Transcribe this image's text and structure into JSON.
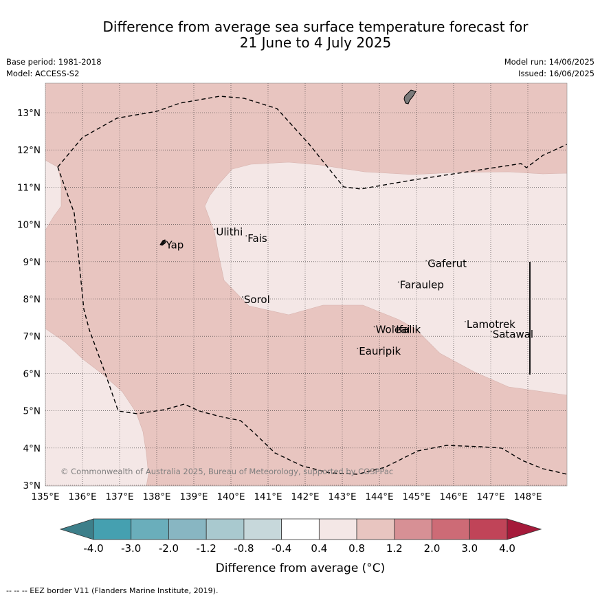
{
  "title_line1": "Difference from average sea surface temperature forecast for",
  "title_line2": "21 June to 4 July 2025",
  "meta": {
    "base_period": "Base period: 1981-2018",
    "model": "Model: ACCESS-S2",
    "model_run": "Model run: 14/06/2025",
    "issued": "Issued: 16/06/2025"
  },
  "map": {
    "lon_range": [
      135,
      149.1
    ],
    "lat_range": [
      3,
      13.8
    ],
    "lon_ticks": [
      "135°E",
      "136°E",
      "137°E",
      "138°E",
      "139°E",
      "140°E",
      "141°E",
      "142°E",
      "143°E",
      "144°E",
      "145°E",
      "146°E",
      "147°E",
      "148°E"
    ],
    "lat_ticks": [
      "3°N",
      "4°N",
      "5°N",
      "6°N",
      "7°N",
      "8°N",
      "9°N",
      "10°N",
      "11°N",
      "12°N",
      "13°N"
    ],
    "copyright": "© Commonwealth of Australia 2025, Bureau of Meteorology, supported by COSPPac",
    "places": [
      {
        "name": "Yap",
        "lon": 138.25,
        "lat": 9.45
      },
      {
        "name": "Ulithi",
        "lon": 139.6,
        "lat": 9.8
      },
      {
        "name": "Fais",
        "lon": 140.45,
        "lat": 9.62
      },
      {
        "name": "Sorol",
        "lon": 140.35,
        "lat": 7.98
      },
      {
        "name": "Gaferut",
        "lon": 145.3,
        "lat": 8.95
      },
      {
        "name": "Faraulep",
        "lon": 144.55,
        "lat": 8.38
      },
      {
        "name": "Woleai",
        "lon": 143.9,
        "lat": 7.18
      },
      {
        "name": "Ifalik",
        "lon": 144.45,
        "lat": 7.18
      },
      {
        "name": "Lamotrek",
        "lon": 146.35,
        "lat": 7.32
      },
      {
        "name": "Satawal",
        "lon": 147.05,
        "lat": 7.05
      },
      {
        "name": "Eauripik",
        "lon": 143.45,
        "lat": 6.6
      }
    ]
  },
  "colorbar": {
    "ticks": [
      "-4.0",
      "-3.0",
      "-2.0",
      "-1.2",
      "-0.8",
      "-0.4",
      "0.4",
      "0.8",
      "1.2",
      "2.0",
      "3.0",
      "4.0"
    ],
    "colors": [
      "#3d7f8a",
      "#45a0b0",
      "#6aaebb",
      "#88b6c2",
      "#a9c9cf",
      "#c7d8db",
      "#ffffff",
      "#f4e7e6",
      "#e8c5c0",
      "#d79095",
      "#cd6b76",
      "#c04458",
      "#a51a3a"
    ],
    "label": "Difference from average (°C)"
  },
  "footnote": "-- -- -- EEZ border V11 (Flanders Marine Institute, 2019)."
}
